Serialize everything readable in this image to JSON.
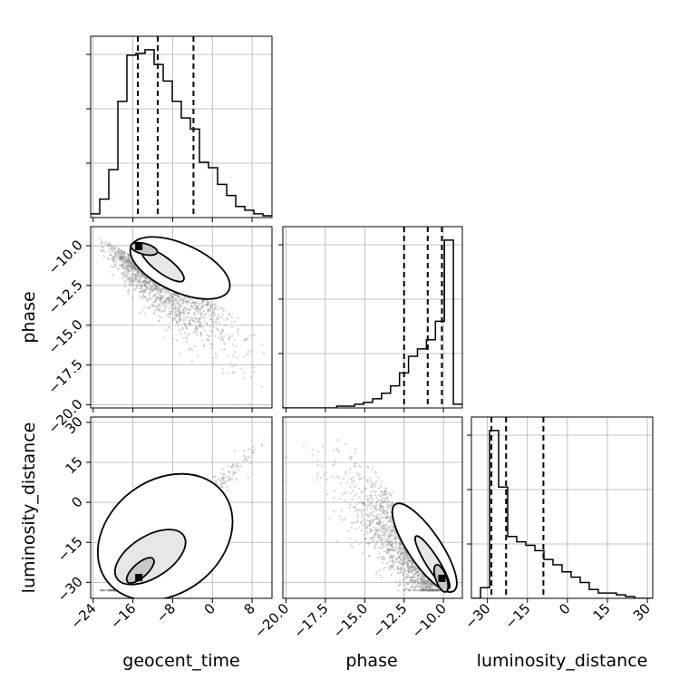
{
  "chart_data": {
    "type": "corner",
    "parameters": [
      "geocent_time",
      "phase",
      "luminosity_distance"
    ],
    "axis_labels": {
      "geocent_time": "geocent_time",
      "phase": "phase",
      "luminosity_distance": "luminosity_distance"
    },
    "ranges": {
      "geocent_time": [
        -24.5,
        12
      ],
      "phase": [
        -20.2,
        -8.8
      ],
      "luminosity_distance": [
        -36,
        32
      ]
    },
    "ticks": {
      "geocent_time": {
        "values": [
          -24,
          -16,
          -8,
          0,
          8
        ],
        "labels": [
          "−24",
          "−16",
          "−8",
          "0",
          "8"
        ]
      },
      "phase": {
        "values": [
          -20,
          -17.5,
          -15,
          -12.5,
          -10
        ],
        "labels": [
          "−20.0",
          "−17.5",
          "−15.0",
          "−12.5",
          "−10.0"
        ]
      },
      "luminosity_distance": {
        "values": [
          -30,
          -15,
          0,
          15,
          30
        ],
        "labels": [
          "−30",
          "−15",
          "0",
          "15",
          "30"
        ]
      }
    },
    "quantiles": {
      "geocent_time": [
        -15,
        -11,
        -3.8
      ],
      "phase": [
        -12.5,
        -11,
        -10.1
      ],
      "luminosity_distance": [
        -28.5,
        -23,
        -9
      ]
    },
    "histograms": {
      "geocent_time": {
        "edges": [
          -24.5,
          -22.67,
          -20.85,
          -19.02,
          -17.2,
          -15.38,
          -13.55,
          -11.72,
          -9.9,
          -8.07,
          -6.25,
          -4.42,
          -2.6,
          -0.77,
          1.05,
          2.88,
          4.7,
          6.53,
          8.35,
          10.18,
          12
        ],
        "counts": [
          2,
          10,
          26,
          63,
          88,
          89,
          91,
          83,
          74,
          63,
          54,
          48,
          30,
          27,
          18,
          12,
          6,
          4,
          2,
          1
        ]
      },
      "phase": {
        "edges": [
          -20.2,
          -19.63,
          -19.06,
          -18.49,
          -17.92,
          -17.35,
          -16.78,
          -16.21,
          -15.64,
          -15.07,
          -14.5,
          -13.93,
          -13.36,
          -12.79,
          -12.22,
          -11.65,
          -11.08,
          -10.51,
          -9.94,
          -9.37,
          -8.8
        ],
        "counts": [
          0,
          0,
          0,
          0,
          0,
          0,
          1,
          1,
          2,
          3,
          5,
          8,
          12,
          19,
          28,
          32,
          37,
          47,
          91,
          2
        ]
      },
      "luminosity_distance": {
        "edges": [
          -36,
          -32.6,
          -29.2,
          -25.8,
          -22.4,
          -19,
          -15.6,
          -12.2,
          -8.8,
          -5.4,
          -2,
          1.4,
          4.8,
          8.2,
          11.6,
          15,
          18.4,
          21.8,
          25.2,
          28.6,
          32
        ],
        "counts": [
          0,
          6,
          95,
          63,
          35,
          32,
          30,
          27,
          22,
          19,
          15,
          12,
          9,
          5,
          3,
          3,
          2,
          1,
          0,
          0
        ]
      }
    },
    "density_peaks": {
      "geocent_time_vs_phase": [
        -14.8,
        -10.05
      ],
      "geocent_time_vs_luminosity_distance": [
        -14.8,
        -28.2
      ],
      "phase_vs_luminosity_distance": [
        -10.1,
        -28.5
      ]
    },
    "grid": true,
    "scatter_color": "#808080",
    "line_color": "#000000"
  }
}
